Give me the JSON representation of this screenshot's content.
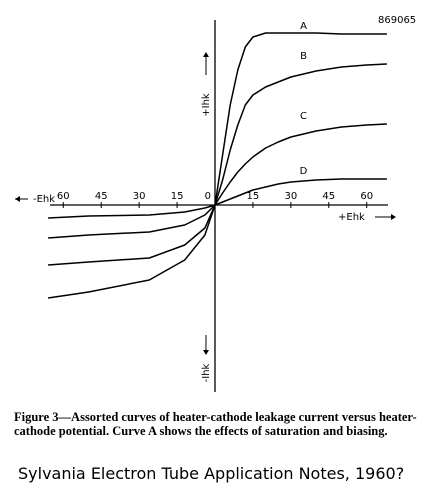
{
  "chart_data": {
    "type": "line",
    "code": "869065",
    "x_label_negative": "-Ehk",
    "x_label_positive": "+Ehk",
    "y_label_positive": "+Ihk",
    "y_label_negative": "-Ihk",
    "x": [
      -66,
      -50,
      -26,
      -12,
      -4,
      0,
      3,
      6,
      9,
      12,
      15,
      20,
      25,
      30,
      40,
      50,
      60,
      68
    ],
    "series": [
      {
        "name": "A",
        "color": "#000000",
        "values": [
          -9.3,
          -8.7,
          -7.5,
          -5.5,
          -3,
          0,
          5,
          10,
          13.5,
          15.8,
          16.8,
          17.2,
          17.2,
          17.2,
          17.2,
          17.1,
          17.1,
          17.1
        ]
      },
      {
        "name": "B",
        "color": "#000000",
        "values": [
          -6,
          -5.7,
          -5.3,
          -4,
          -2.3,
          0,
          2.5,
          5.5,
          8,
          10,
          11,
          11.8,
          12.3,
          12.8,
          13.4,
          13.8,
          14,
          14.1
        ]
      },
      {
        "name": "C",
        "color": "#000000",
        "values": [
          -3.3,
          -3,
          -2.7,
          -2,
          -1,
          0,
          1.2,
          2.3,
          3.3,
          4.1,
          4.8,
          5.7,
          6.3,
          6.8,
          7.4,
          7.8,
          8,
          8.1
        ]
      },
      {
        "name": "D",
        "color": "#000000",
        "values": [
          -1.3,
          -1.1,
          -1,
          -0.7,
          -0.3,
          0,
          0.3,
          0.6,
          0.9,
          1.2,
          1.5,
          1.8,
          2.1,
          2.3,
          2.5,
          2.6,
          2.6,
          2.6
        ]
      }
    ],
    "xlim": [
      -70,
      70
    ],
    "ylim": [
      -18.5,
      18.5
    ],
    "xticks": [
      {
        "value": -60,
        "label": "60"
      },
      {
        "value": -45,
        "label": "45"
      },
      {
        "value": -30,
        "label": "30"
      },
      {
        "value": -15,
        "label": "15"
      },
      0,
      15,
      30,
      45,
      60
    ],
    "caption": "Figure 3—Assorted curves of heater-cathode leakage current versus heater-cathode potential. Curve A shows the effects of saturation and biasing.",
    "source": "Sylvania Electron Tube Application Notes, 1960?"
  }
}
